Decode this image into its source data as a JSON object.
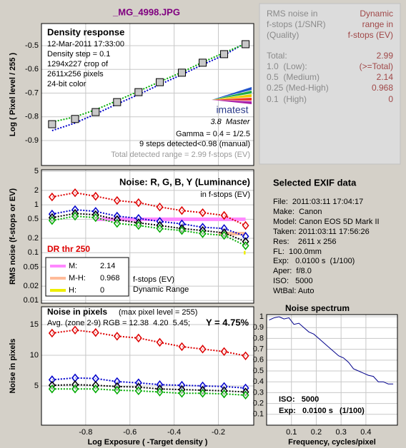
{
  "page_title": "_MG_4998.JPG",
  "summary": {
    "header_left": [
      "RMS noise in",
      "f-stops (1/SNR)",
      "(Quality)"
    ],
    "header_right": [
      "Dynamic",
      "range in",
      "f-stops (EV)"
    ],
    "rows": [
      [
        "Total:",
        "2.99"
      ],
      [
        "1.0  (Low):",
        "(>=Total)"
      ],
      [
        "0.5  (Medium)",
        "2.14"
      ],
      [
        "0.25 (Med-High)",
        "0.968"
      ],
      [
        "0.1  (High)",
        "0"
      ]
    ]
  },
  "exif": {
    "title": "Selected EXIF data",
    "lines": [
      "File:  2011:03:11 17:04:17",
      "Make:  Canon",
      "Model: Canon EOS 5D Mark II",
      "Taken: 2011:03:11 17:56:26",
      "Res:    2611 x 256",
      "FL:  100.0mm",
      "Exp:   0.0100 s  (1/100)",
      "Aper:  f/8.0",
      "ISO:   5000",
      "WtBal: Auto"
    ]
  },
  "chart_data": [
    {
      "type": "line",
      "title": "Density response",
      "ylabel": "Log ( Pixel level / 255 )",
      "notes": [
        "12-Mar-2011 17:33:00",
        "Density step = 0.1",
        "1294x227 crop of",
        "2611x256 pixels",
        "24-bit color"
      ],
      "logo": "imatest",
      "version": "3.8  Master",
      "notes_right": [
        "Gamma = 0.4 = 1/2.5",
        "9 steps detected<0.98 (manual)",
        "Total detected range = 2.99 f-stops (EV)"
      ],
      "xlim": [
        -1.0,
        -0.04
      ],
      "ylim": [
        -1.005,
        -0.407
      ],
      "yticks": [
        -0.5,
        -0.6,
        -0.7,
        -0.8,
        -0.9
      ],
      "grid": true,
      "x": [
        -0.952,
        -0.848,
        -0.755,
        -0.658,
        -0.561,
        -0.465,
        -0.365,
        -0.271,
        -0.174,
        -0.077
      ],
      "series": [
        {
          "color": "#0000cc",
          "dash": true,
          "marker": "none",
          "values": [
            -0.858,
            -0.826,
            -0.788,
            -0.746,
            -0.706,
            -0.664,
            -0.622,
            -0.58,
            -0.54,
            -0.488
          ]
        },
        {
          "color": "#00aa00",
          "dash": true,
          "marker": "none",
          "values": [
            -0.822,
            -0.8,
            -0.77,
            -0.732,
            -0.692,
            -0.652,
            -0.612,
            -0.57,
            -0.53,
            -0.492
          ]
        },
        {
          "color": "#000000",
          "fill": "#c8c8c8",
          "line": false,
          "marker": "square",
          "values": [
            -0.831,
            -0.809,
            -0.78,
            -0.738,
            -0.696,
            -0.654,
            -0.614,
            -0.572,
            -0.536,
            -0.494
          ]
        }
      ]
    },
    {
      "type": "line",
      "title": "Noise: R, G, B, Y (Luminance)",
      "subtitle": "in f-stops (EV)",
      "ylabel": "RMS noise (f-stops or EV)",
      "threshold_label": "DR thr 250",
      "legend_notes": [
        "f-stops (EV)",
        "Dynamic Range"
      ],
      "log_y": true,
      "xlim": [
        -1.0,
        -0.04
      ],
      "ylim": [
        0.0088,
        5.4
      ],
      "yticks": [
        0.01,
        0.02,
        0.05,
        0.1,
        0.2,
        0.5,
        1,
        2,
        5
      ],
      "grid": true,
      "legend": [
        {
          "label": "M:",
          "value": 2.14,
          "color": "#ff88ff",
          "level": 0.5,
          "span": [
            -0.755,
            -0.077
          ]
        },
        {
          "label": "M-H:",
          "value": 0.968,
          "color": "#ffbb99",
          "level": 0.25,
          "span": [
            -0.2,
            -0.077
          ]
        },
        {
          "label": "H:",
          "value": 0,
          "color": "#eeee00",
          "level": 0.1,
          "span": [
            -0.085,
            -0.077
          ]
        }
      ],
      "x": [
        -0.952,
        -0.848,
        -0.755,
        -0.658,
        -0.561,
        -0.465,
        -0.365,
        -0.271,
        -0.174,
        -0.077
      ],
      "series": [
        {
          "color": "#dd0000",
          "dash": true,
          "marker": "diamond",
          "values": [
            1.46,
            1.79,
            1.51,
            1.23,
            1.11,
            0.9,
            0.76,
            0.685,
            0.6,
            0.37
          ]
        },
        {
          "color": "#0000cc",
          "dash": true,
          "marker": "diamond",
          "values": [
            0.64,
            0.79,
            0.73,
            0.58,
            0.52,
            0.45,
            0.4,
            0.34,
            0.32,
            0.22
          ]
        },
        {
          "color": "#000000",
          "dash": true,
          "marker": "diamond",
          "values": [
            0.54,
            0.66,
            0.62,
            0.49,
            0.42,
            0.37,
            0.32,
            0.29,
            0.26,
            0.17
          ]
        },
        {
          "color": "#00aa00",
          "dash": true,
          "marker": "diamond",
          "values": [
            0.47,
            0.58,
            0.54,
            0.41,
            0.37,
            0.32,
            0.29,
            0.25,
            0.23,
            0.14
          ]
        }
      ]
    },
    {
      "type": "line",
      "title": "Noise in pixels",
      "subtitle": "(max pixel level = 255)",
      "note": "Avg. (zone 2-9) RGB = 12.38  4.20  5.45;",
      "highlight": "Y = 4.75%",
      "ylabel": "Noise in pixels",
      "xlabel": "Log Exposure ( -Target density )",
      "xlim": [
        -1.0,
        -0.04
      ],
      "ylim": [
        -1.4,
        17.9
      ],
      "xticks": [
        -0.8,
        -0.6,
        -0.4,
        -0.2
      ],
      "yticks": [
        5,
        10,
        15
      ],
      "grid": true,
      "x": [
        -0.952,
        -0.848,
        -0.755,
        -0.658,
        -0.561,
        -0.465,
        -0.365,
        -0.271,
        -0.174,
        -0.077
      ],
      "series": [
        {
          "color": "#dd0000",
          "dash": true,
          "marker": "diamond",
          "values": [
            13.6,
            14.1,
            13.7,
            13.1,
            12.8,
            12.1,
            11.4,
            11.0,
            10.6,
            9.9
          ]
        },
        {
          "color": "#0000cc",
          "dash": true,
          "marker": "diamond",
          "values": [
            6.0,
            6.3,
            6.2,
            5.7,
            5.5,
            5.2,
            5.1,
            5.0,
            4.9,
            4.65
          ]
        },
        {
          "color": "#000000",
          "dash": true,
          "marker": "diamond",
          "values": [
            5.1,
            5.2,
            5.1,
            4.9,
            4.8,
            4.5,
            4.4,
            4.3,
            4.2,
            4.0
          ]
        },
        {
          "color": "#00aa00",
          "dash": true,
          "marker": "diamond",
          "values": [
            4.5,
            4.5,
            4.5,
            4.3,
            4.2,
            4.0,
            3.8,
            3.8,
            3.7,
            3.5
          ]
        }
      ]
    },
    {
      "type": "line",
      "title": "Noise spectrum",
      "xlabel": "Frequency, cycles/pixel",
      "notes": [
        "ISO:   5000",
        "Exp:   0.0100 s   (1/100)"
      ],
      "xlim": [
        0,
        0.527
      ],
      "ylim": [
        0,
        1.02
      ],
      "xticks": [
        0.1,
        0.2,
        0.3,
        0.4
      ],
      "yticks": [
        0.1,
        0.2,
        0.3,
        0.4,
        0.5,
        0.6,
        0.7,
        0.8,
        0.9,
        1
      ],
      "grid": true,
      "x": [
        0.01,
        0.03,
        0.05,
        0.07,
        0.09,
        0.11,
        0.13,
        0.15,
        0.17,
        0.19,
        0.21,
        0.23,
        0.25,
        0.27,
        0.29,
        0.31,
        0.33,
        0.35,
        0.37,
        0.39,
        0.41,
        0.43,
        0.45,
        0.47,
        0.49,
        0.51
      ],
      "series": [
        {
          "color": "#00008b",
          "dash": false,
          "marker": "none",
          "values": [
            0.97,
            0.99,
            1.0,
            0.98,
            0.99,
            0.93,
            0.94,
            0.9,
            0.86,
            0.84,
            0.8,
            0.76,
            0.72,
            0.68,
            0.64,
            0.62,
            0.58,
            0.52,
            0.5,
            0.48,
            0.46,
            0.45,
            0.4,
            0.4,
            0.38,
            0.38
          ]
        }
      ]
    }
  ]
}
